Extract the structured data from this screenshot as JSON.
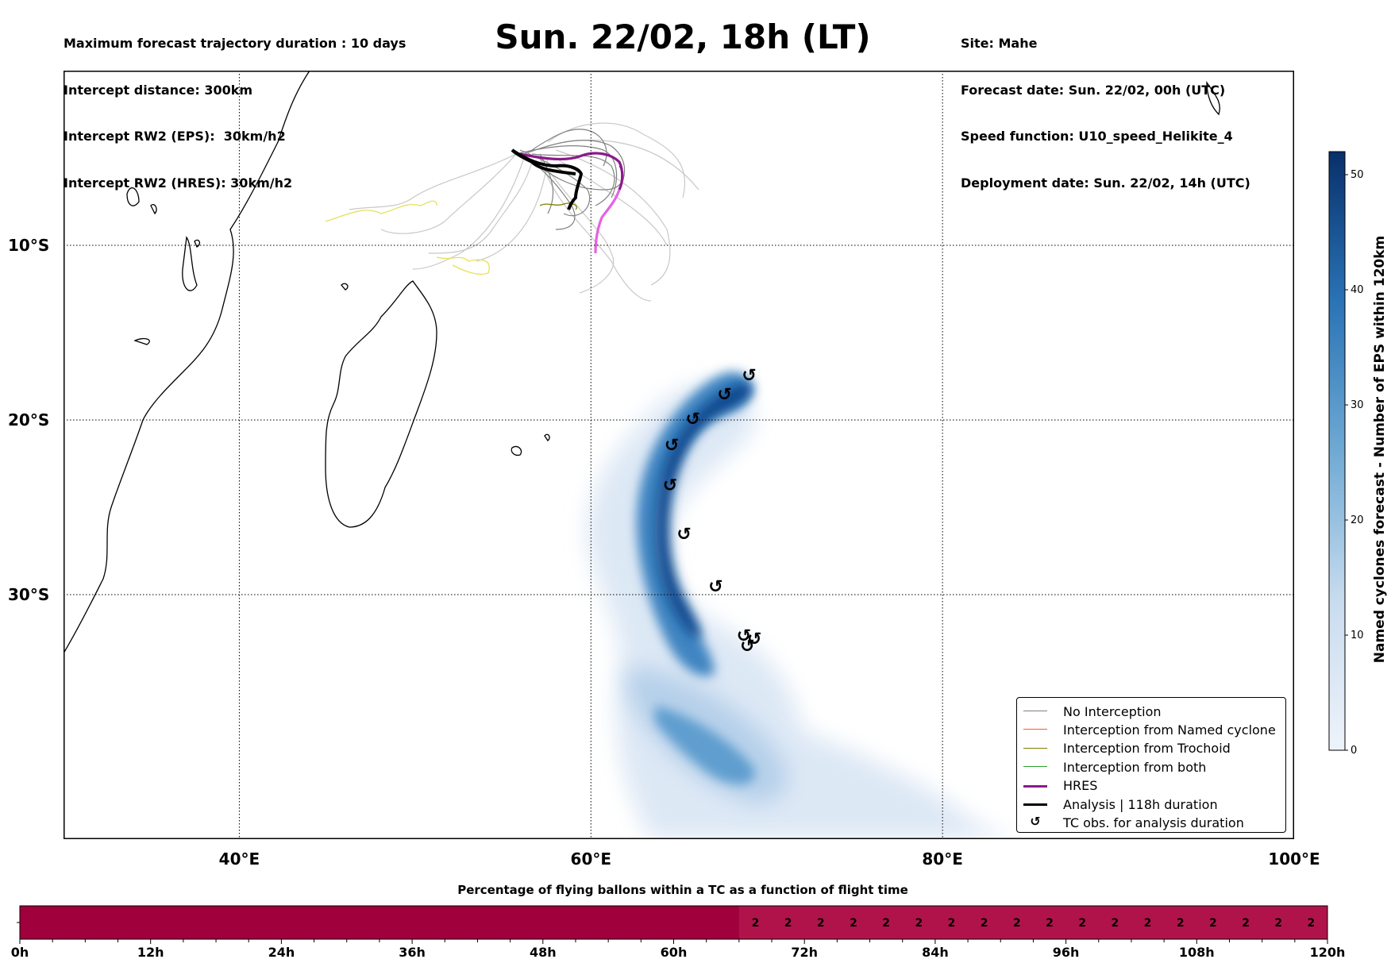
{
  "header_left": [
    "Maximum forecast trajectory duration : 10 days",
    "Intercept distance: 300km",
    "Intercept RW2 (EPS):  30km/h2",
    "Intercept RW2 (HRES): 30km/h2"
  ],
  "title": "Sun. 22/02, 18h (LT)",
  "header_right": [
    "Site: Mahe",
    "Forecast date: Sun. 22/02, 00h (UTC)",
    "Speed function: U10_speed_Helikite_4",
    "Deployment date: Sun. 22/02, 14h (UTC)"
  ],
  "map": {
    "lon_range": [
      30,
      100
    ],
    "lat_range": [
      -44,
      0
    ],
    "lon_ticks": [
      "40°E",
      "60°E",
      "80°E",
      "100°E"
    ],
    "lat_ticks": [
      "10°S",
      "20°S",
      "30°S"
    ]
  },
  "legend": {
    "items": [
      {
        "label": "No Interception",
        "color": "#808080",
        "style": "thin"
      },
      {
        "label": "Interception from Named cyclone",
        "color": "#ff5a1e",
        "style": "thin"
      },
      {
        "label": "Interception from Trochoid",
        "color": "#808000",
        "style": "thin"
      },
      {
        "label": "Interception from both",
        "color": "#2ca02c",
        "style": "thin"
      },
      {
        "label": "HRES",
        "color": "#8b1a8b",
        "style": "thick"
      },
      {
        "label": "Analysis | 118h duration",
        "color": "#000000",
        "style": "thick"
      },
      {
        "label": "TC obs. for analysis duration",
        "color": "#000000",
        "style": "symbol"
      }
    ]
  },
  "colorbar": {
    "label": "Named cyclones forecast - Number of EPS within 120km",
    "ticks": [
      "0",
      "10",
      "20",
      "30",
      "40",
      "50"
    ],
    "min": 0,
    "max": 52,
    "color_low": "#eef3fa",
    "color_high": "#08306b"
  },
  "tc_obs": [
    {
      "lon": 69.0,
      "lat": -17.5
    },
    {
      "lon": 67.6,
      "lat": -18.6
    },
    {
      "lon": 65.8,
      "lat": -20.0
    },
    {
      "lon": 64.6,
      "lat": -21.5
    },
    {
      "lon": 64.5,
      "lat": -23.8
    },
    {
      "lon": 65.3,
      "lat": -26.6
    },
    {
      "lon": 67.1,
      "lat": -29.6
    },
    {
      "lon": 68.7,
      "lat": -32.4
    },
    {
      "lon": 69.3,
      "lat": -32.6
    },
    {
      "lon": 68.9,
      "lat": -33.0
    }
  ],
  "bottom_bar": {
    "title": "Percentage of flying ballons within a TC as a function of flight time",
    "ticks": [
      "0h",
      "12h",
      "24h",
      "36h",
      "48h",
      "60h",
      "72h",
      "84h",
      "96h",
      "108h",
      "120h"
    ],
    "start_hour": 66,
    "values": [
      "2",
      "2",
      "2",
      "2",
      "2",
      "2",
      "2",
      "2",
      "2",
      "2",
      "2",
      "2",
      "2",
      "2",
      "2",
      "2",
      "2",
      "2"
    ],
    "color": "#a0003c"
  }
}
